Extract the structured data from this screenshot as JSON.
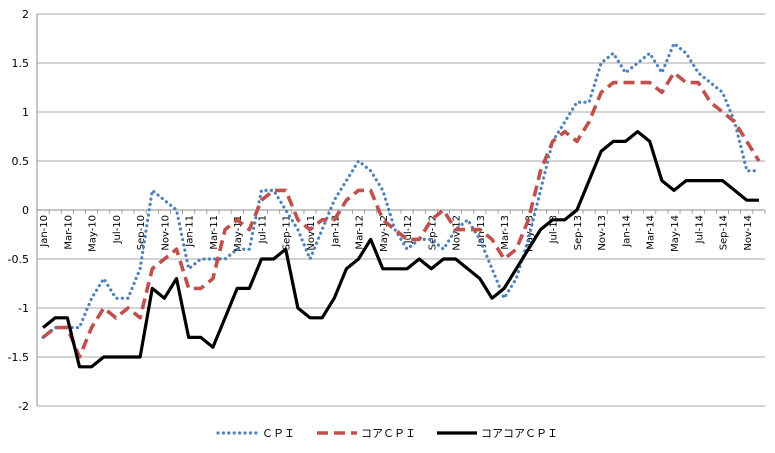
{
  "chart_data": {
    "type": "line",
    "title": "",
    "xlabel": "",
    "ylabel": "",
    "ylim": [
      -2,
      2
    ],
    "yticks": [
      -2,
      -1.5,
      -1,
      -0.5,
      0,
      0.5,
      1,
      1.5,
      2
    ],
    "ytick_labels": [
      "-2",
      "-1.5",
      "-1",
      "-0.5",
      "0",
      "0.5",
      "1",
      "1.5",
      "2"
    ],
    "grid": "horizontal",
    "legend_position": "bottom",
    "x": [
      "Jan-10",
      "Feb-10",
      "Mar-10",
      "Apr-10",
      "May-10",
      "Jun-10",
      "Jul-10",
      "Aug-10",
      "Sep-10",
      "Oct-10",
      "Nov-10",
      "Dec-10",
      "Jan-11",
      "Feb-11",
      "Mar-11",
      "Apr-11",
      "May-11",
      "Jun-11",
      "Jul-11",
      "Aug-11",
      "Sep-11",
      "Oct-11",
      "Nov-11",
      "Dec-11",
      "Jan-12",
      "Feb-12",
      "Mar-12",
      "Apr-12",
      "May-12",
      "Jun-12",
      "Jul-12",
      "Aug-12",
      "Sep-12",
      "Oct-12",
      "Nov-12",
      "Dec-12",
      "Jan-13",
      "Feb-13",
      "Mar-13",
      "Apr-13",
      "May-13",
      "Jun-13",
      "Jul-13",
      "Aug-13",
      "Sep-13",
      "Oct-13",
      "Nov-13",
      "Dec-13",
      "Jan-14",
      "Feb-14",
      "Mar-14",
      "Apr-14",
      "May-14",
      "Jun-14",
      "Jul-14",
      "Aug-14",
      "Sep-14",
      "Oct-14",
      "Nov-14",
      "Dec-14"
    ],
    "x_tick_labels": [
      "Jan-10",
      "Mar-10",
      "May-10",
      "Jul-10",
      "Sep-10",
      "Nov-10",
      "Jan-11",
      "Mar-11",
      "May-11",
      "Jul-11",
      "Sep-11",
      "Nov-11",
      "Jan-12",
      "Mar-12",
      "May-12",
      "Jul-12",
      "Sep-12",
      "Nov-12",
      "Jan-13",
      "Mar-13",
      "May-13",
      "Jul-13",
      "Sep-13",
      "Nov-13",
      "Jan-14",
      "Mar-14",
      "May-14",
      "Jul-14",
      "Sep-14",
      "Nov-14"
    ],
    "series": [
      {
        "name": "ＣＰＩ",
        "color": "#4f81bd",
        "style": "dotted",
        "values": [
          -1.3,
          -1.2,
          -1.2,
          -1.2,
          -0.9,
          -0.7,
          -0.9,
          -0.9,
          -0.6,
          0.2,
          0.1,
          0.0,
          -0.6,
          -0.5,
          -0.5,
          -0.5,
          -0.4,
          -0.4,
          0.2,
          0.2,
          0.0,
          -0.2,
          -0.5,
          -0.2,
          0.1,
          0.3,
          0.5,
          0.4,
          0.2,
          -0.2,
          -0.4,
          -0.3,
          -0.3,
          -0.4,
          -0.2,
          -0.1,
          -0.3,
          -0.6,
          -0.9,
          -0.7,
          -0.3,
          0.2,
          0.7,
          0.9,
          1.1,
          1.1,
          1.5,
          1.6,
          1.4,
          1.5,
          1.6,
          1.4,
          1.7,
          1.6,
          1.4,
          1.3,
          1.2,
          0.9,
          0.4,
          0.4
        ]
      },
      {
        "name": "コアＣＰＩ",
        "color": "#c0504d",
        "style": "dashed",
        "values": [
          -1.3,
          -1.2,
          -1.2,
          -1.5,
          -1.2,
          -1.0,
          -1.1,
          -1.0,
          -1.1,
          -0.6,
          -0.5,
          -0.4,
          -0.8,
          -0.8,
          -0.7,
          -0.2,
          -0.1,
          -0.2,
          0.1,
          0.2,
          0.2,
          -0.1,
          -0.2,
          -0.1,
          -0.1,
          0.1,
          0.2,
          0.2,
          -0.1,
          -0.2,
          -0.3,
          -0.3,
          -0.1,
          0.0,
          -0.2,
          -0.2,
          -0.2,
          -0.3,
          -0.5,
          -0.4,
          -0.1,
          0.4,
          0.7,
          0.8,
          0.7,
          0.9,
          1.2,
          1.3,
          1.3,
          1.3,
          1.3,
          1.2,
          1.4,
          1.3,
          1.3,
          1.1,
          1.0,
          0.9,
          0.7,
          0.5
        ]
      },
      {
        "name": "コアコアＣＰＩ",
        "color": "#000000",
        "style": "solid",
        "values": [
          -1.2,
          -1.1,
          -1.1,
          -1.6,
          -1.6,
          -1.5,
          -1.5,
          -1.5,
          -1.5,
          -0.8,
          -0.9,
          -0.7,
          -1.3,
          -1.3,
          -1.4,
          -1.1,
          -0.8,
          -0.8,
          -0.5,
          -0.5,
          -0.4,
          -1.0,
          -1.1,
          -1.1,
          -0.9,
          -0.6,
          -0.5,
          -0.3,
          -0.6,
          -0.6,
          -0.6,
          -0.5,
          -0.6,
          -0.5,
          -0.5,
          -0.6,
          -0.7,
          -0.9,
          -0.8,
          -0.6,
          -0.4,
          -0.2,
          -0.1,
          -0.1,
          0.0,
          0.3,
          0.6,
          0.7,
          0.7,
          0.8,
          0.7,
          0.3,
          0.2,
          0.3,
          0.3,
          0.3,
          0.3,
          0.2,
          0.1,
          0.1
        ]
      }
    ]
  }
}
